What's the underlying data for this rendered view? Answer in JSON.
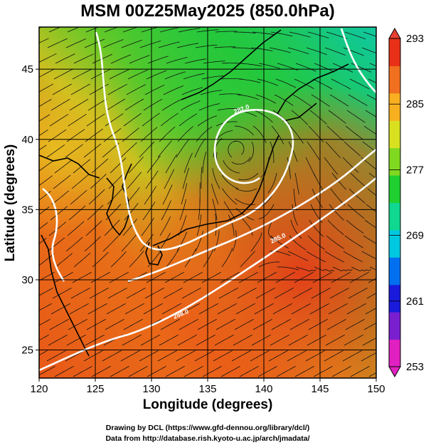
{
  "title": "MSM 00Z25May2025 (850.0hPa)",
  "xlabel": "Longitude (degrees)",
  "ylabel": "Latitude  (degrees)",
  "x_ticks": [
    "120",
    "125",
    "130",
    "135",
    "140",
    "145",
    "150"
  ],
  "y_ticks": [
    "25",
    "30",
    "35",
    "40",
    "45"
  ],
  "colorbar": {
    "ticks": [
      "293",
      "285",
      "277",
      "269",
      "261",
      "253"
    ],
    "min": 253,
    "max": 293,
    "colors": [
      "#e020c0",
      "#7a1fd0",
      "#1a1adc",
      "#0070f0",
      "#00c8e0",
      "#10d890",
      "#20d030",
      "#80d820",
      "#d8e020",
      "#f8b020",
      "#f07020",
      "#e83018"
    ]
  },
  "credits": {
    "line1": "Drawing by DCL (https://www.gfd-dennou.org/library/dcl/)",
    "line2": "Data from http://database.rish.kyoto-u.ac.jp/arch/jmadata/"
  },
  "chart_data": {
    "type": "heatmap",
    "variable": "temperature at 850 hPa (K) with wind streamlines",
    "xlim": [
      120,
      150
    ],
    "ylim": [
      23,
      48
    ],
    "color_range": [
      253,
      293
    ],
    "contour_labels": [
      "288.0",
      "285.0",
      "282.0"
    ],
    "features": {
      "cyclone_center": {
        "lon": 137.5,
        "lat": 39.5
      }
    }
  }
}
